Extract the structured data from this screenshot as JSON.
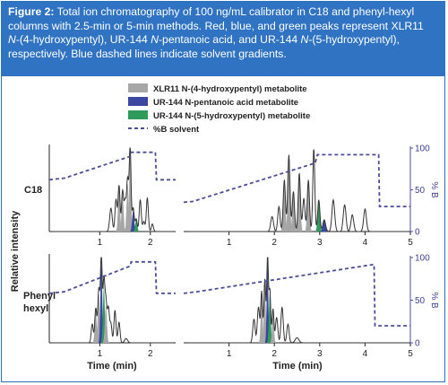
{
  "caption": {
    "label": "Figure 2:",
    "line1_rest": " Total ion chromatography of 100 ng/mL calibrator in C18 and phenyl-hexyl",
    "line2": "columns with 2.5-min or 5-min methods. Red, blue, and green peaks represent XLR11",
    "line3_ital": "N",
    "line3_rest": "-(4-hydroxypentyl), UR-144 ",
    "line3_ital2": "N",
    "line3_rest2": "-pentanoic acid, and UR-144 ",
    "line3_ital3": "N",
    "line3_rest3": "-(5-hydroxypentyl),",
    "line4": "respectively. Blue dashed lines indicate solvent gradients."
  },
  "colors": {
    "caption_bg": "#2f73c2",
    "xlr11": "#a6a6a6",
    "pentanoic": "#3b47a0",
    "hydroxypentyl": "#2e9a5c",
    "trace": "#333333",
    "solvent": "#4a4e99"
  },
  "chart_data": {
    "type": "line",
    "legend": [
      {
        "key": "xlr11",
        "label": "XLR11 N-(4-hydroxypentyl) metabolite",
        "swatch": "gray-bar"
      },
      {
        "key": "pentanoic",
        "label": "UR-144 N-pentanoic acid metabolite",
        "swatch": "blue-bar"
      },
      {
        "key": "hydroxypentyl",
        "label": "UR-144 N-(5-hydroxypentyl) metabolite",
        "swatch": "green-bar"
      },
      {
        "key": "solvent",
        "label": "%B solvent",
        "swatch": "dashed-line"
      }
    ],
    "row_labels": [
      "C18",
      "Phenyl\nhexyl"
    ],
    "ylabel": "Relative intensity",
    "xlabel": "Time (min)",
    "right_ticks": [
      "0",
      "50",
      "100"
    ],
    "right_label": "% B",
    "panels": [
      {
        "id": "c18-short",
        "xlim": [
          0,
          2.5
        ],
        "xticks": [
          1,
          2
        ],
        "solvent": [
          [
            0,
            62
          ],
          [
            0.3,
            64
          ],
          [
            1.6,
            90
          ],
          [
            1.62,
            95
          ],
          [
            2.1,
            95
          ],
          [
            2.12,
            62
          ],
          [
            2.5,
            62
          ]
        ],
        "peaks": [
          {
            "t": 1.22,
            "h": 28,
            "w": 0.025
          },
          {
            "t": 1.32,
            "h": 38,
            "w": 0.02
          },
          {
            "t": 1.38,
            "h": 55,
            "w": 0.02
          },
          {
            "t": 1.45,
            "h": 48,
            "w": 0.02
          },
          {
            "t": 1.5,
            "h": 35,
            "w": 0.02
          },
          {
            "t": 1.55,
            "h": 62,
            "w": 0.02
          },
          {
            "t": 1.6,
            "h": 100,
            "w": 0.018
          },
          {
            "t": 1.66,
            "h": 28,
            "w": 0.02
          },
          {
            "t": 1.72,
            "h": 15,
            "w": 0.02
          },
          {
            "t": 1.8,
            "h": 38,
            "w": 0.02
          },
          {
            "t": 1.87,
            "h": 12,
            "w": 0.02
          },
          {
            "t": 1.94,
            "h": 40,
            "w": 0.02
          },
          {
            "t": 2.04,
            "h": 9,
            "w": 0.02
          }
        ],
        "fills": [
          {
            "t": 1.38,
            "h": 50,
            "w": 0.02,
            "key": "xlr11"
          },
          {
            "t": 1.45,
            "h": 44,
            "w": 0.02,
            "key": "xlr11"
          },
          {
            "t": 1.55,
            "h": 58,
            "w": 0.02,
            "key": "xlr11"
          },
          {
            "t": 1.6,
            "h": 96,
            "w": 0.018,
            "key": "xlr11"
          },
          {
            "t": 1.66,
            "h": 25,
            "w": 0.02,
            "key": "pentanoic"
          },
          {
            "t": 1.72,
            "h": 14,
            "w": 0.02,
            "key": "hydroxypentyl"
          }
        ]
      },
      {
        "id": "c18-long",
        "xlim": [
          0,
          5
        ],
        "xticks": [
          1,
          2,
          3,
          4,
          5
        ],
        "solvent": [
          [
            0,
            35
          ],
          [
            0.2,
            36
          ],
          [
            2.9,
            82
          ],
          [
            2.95,
            92
          ],
          [
            4.3,
            92
          ],
          [
            4.32,
            30
          ],
          [
            5,
            30
          ]
        ],
        "peaks": [
          {
            "t": 1.95,
            "h": 18,
            "w": 0.03
          },
          {
            "t": 2.1,
            "h": 30,
            "w": 0.025
          },
          {
            "t": 2.22,
            "h": 62,
            "w": 0.025
          },
          {
            "t": 2.32,
            "h": 92,
            "w": 0.025
          },
          {
            "t": 2.42,
            "h": 48,
            "w": 0.025
          },
          {
            "t": 2.55,
            "h": 70,
            "w": 0.025
          },
          {
            "t": 2.65,
            "h": 40,
            "w": 0.025
          },
          {
            "t": 2.75,
            "h": 62,
            "w": 0.025
          },
          {
            "t": 2.87,
            "h": 100,
            "w": 0.022
          },
          {
            "t": 2.98,
            "h": 38,
            "w": 0.025
          },
          {
            "t": 3.1,
            "h": 14,
            "w": 0.03
          },
          {
            "t": 3.3,
            "h": 38,
            "w": 0.03
          },
          {
            "t": 3.55,
            "h": 32,
            "w": 0.03
          },
          {
            "t": 3.72,
            "h": 20,
            "w": 0.03
          },
          {
            "t": 4.0,
            "h": 27,
            "w": 0.03
          }
        ],
        "fills": [
          {
            "t": 2.22,
            "h": 58,
            "w": 0.025,
            "key": "xlr11"
          },
          {
            "t": 2.32,
            "h": 86,
            "w": 0.025,
            "key": "xlr11"
          },
          {
            "t": 2.42,
            "h": 44,
            "w": 0.025,
            "key": "xlr11"
          },
          {
            "t": 2.55,
            "h": 64,
            "w": 0.025,
            "key": "xlr11"
          },
          {
            "t": 2.75,
            "h": 58,
            "w": 0.025,
            "key": "xlr11"
          },
          {
            "t": 2.98,
            "h": 36,
            "w": 0.025,
            "key": "hydroxypentyl"
          },
          {
            "t": 3.1,
            "h": 14,
            "w": 0.03,
            "key": "pentanoic"
          }
        ]
      },
      {
        "id": "ph-short",
        "xlim": [
          0,
          2.5
        ],
        "xticks": [
          1,
          2
        ],
        "solvent": [
          [
            0,
            58
          ],
          [
            0.3,
            60
          ],
          [
            1.6,
            90
          ],
          [
            1.62,
            95
          ],
          [
            2.1,
            95
          ],
          [
            2.12,
            58
          ],
          [
            2.5,
            58
          ]
        ],
        "peaks": [
          {
            "t": 0.85,
            "h": 22,
            "w": 0.02
          },
          {
            "t": 0.92,
            "h": 40,
            "w": 0.02
          },
          {
            "t": 0.98,
            "h": 62,
            "w": 0.02
          },
          {
            "t": 1.03,
            "h": 100,
            "w": 0.018
          },
          {
            "t": 1.08,
            "h": 70,
            "w": 0.018
          },
          {
            "t": 1.12,
            "h": 48,
            "w": 0.02
          },
          {
            "t": 1.17,
            "h": 40,
            "w": 0.02
          },
          {
            "t": 1.22,
            "h": 22,
            "w": 0.02
          },
          {
            "t": 1.3,
            "h": 38,
            "w": 0.02
          },
          {
            "t": 1.38,
            "h": 24,
            "w": 0.02
          },
          {
            "t": 1.52,
            "h": 5,
            "w": 0.03
          }
        ],
        "fills": [
          {
            "t": 0.92,
            "h": 36,
            "w": 0.02,
            "key": "xlr11"
          },
          {
            "t": 0.98,
            "h": 58,
            "w": 0.02,
            "key": "xlr11"
          },
          {
            "t": 1.03,
            "h": 94,
            "w": 0.018,
            "key": "pentanoic"
          },
          {
            "t": 1.08,
            "h": 66,
            "w": 0.018,
            "key": "hydroxypentyl"
          },
          {
            "t": 1.12,
            "h": 44,
            "w": 0.02,
            "key": "xlr11"
          }
        ]
      },
      {
        "id": "ph-long",
        "xlim": [
          0,
          5
        ],
        "xticks": [
          1,
          2,
          3,
          4,
          5
        ],
        "solvent": [
          [
            0,
            58
          ],
          [
            0.3,
            60
          ],
          [
            4.2,
            92
          ],
          [
            4.22,
            20
          ],
          [
            5,
            20
          ]
        ],
        "peaks": [
          {
            "t": 1.55,
            "h": 28,
            "w": 0.025
          },
          {
            "t": 1.65,
            "h": 42,
            "w": 0.025
          },
          {
            "t": 1.72,
            "h": 60,
            "w": 0.02
          },
          {
            "t": 1.79,
            "h": 75,
            "w": 0.02
          },
          {
            "t": 1.85,
            "h": 100,
            "w": 0.018
          },
          {
            "t": 1.9,
            "h": 62,
            "w": 0.02
          },
          {
            "t": 1.97,
            "h": 40,
            "w": 0.02
          },
          {
            "t": 2.05,
            "h": 30,
            "w": 0.025
          },
          {
            "t": 2.17,
            "h": 42,
            "w": 0.025
          },
          {
            "t": 2.3,
            "h": 22,
            "w": 0.025
          },
          {
            "t": 2.5,
            "h": 6,
            "w": 0.04
          }
        ],
        "fills": [
          {
            "t": 1.72,
            "h": 56,
            "w": 0.02,
            "key": "xlr11"
          },
          {
            "t": 1.79,
            "h": 70,
            "w": 0.02,
            "key": "xlr11"
          },
          {
            "t": 1.85,
            "h": 95,
            "w": 0.018,
            "key": "pentanoic"
          },
          {
            "t": 1.9,
            "h": 58,
            "w": 0.02,
            "key": "hydroxypentyl"
          },
          {
            "t": 1.97,
            "h": 36,
            "w": 0.02,
            "key": "xlr11"
          }
        ]
      }
    ]
  }
}
